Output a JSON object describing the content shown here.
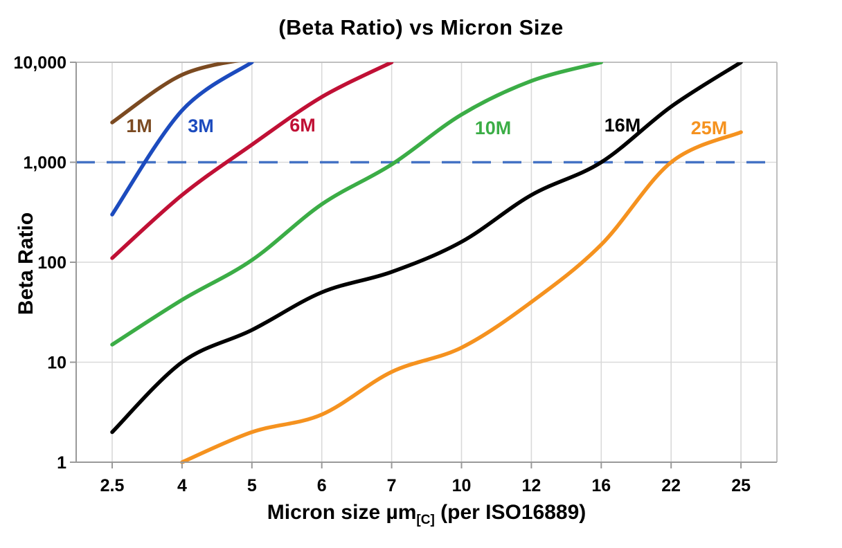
{
  "chart_data": {
    "type": "line",
    "title": "(Beta Ratio) vs Micron Size",
    "ylabel": "Beta Ratio",
    "xlabel_main": "Micron size µm",
    "xlabel_sub": "[C]",
    "xlabel_suffix": " (per ISO16889)",
    "x_categories": [
      "2.5",
      "4",
      "5",
      "6",
      "7",
      "10",
      "12",
      "16",
      "22",
      "25"
    ],
    "x_axis_type": "category (equal spacing)",
    "y_scale": "log",
    "y_range": [
      1,
      10000
    ],
    "y_tick_labels": [
      "10,000",
      "1,000",
      "100",
      "10",
      "1"
    ],
    "y_tick_values": [
      10000,
      1000,
      100,
      10,
      1
    ],
    "grid": "light gray verticals at each micron tick, horizontals at each decade",
    "legend_position": "labels drawn on curves",
    "reference_line": {
      "value": 1000,
      "style": "dashed",
      "color": "#4472C4",
      "meaning": "Beta ratio = 1000 rating threshold"
    },
    "series": [
      {
        "name": "1M",
        "color": "#7B4A21",
        "values": [
          2500,
          7500,
          null,
          null,
          null,
          null,
          null,
          null,
          null,
          null
        ],
        "offscale_hint": {
          "index": 2,
          "value": 11000
        },
        "note": "curve exits top of chart (>10,000) between 4 and 5 µm"
      },
      {
        "name": "3M",
        "color": "#1C4BBE",
        "values": [
          300,
          3300,
          10000,
          null,
          null,
          null,
          null,
          null,
          null,
          null
        ],
        "note": "reaches 10,000 at 5 µm; crosses beta 1000 near 3.2 µm"
      },
      {
        "name": "6M",
        "color": "#C01035",
        "values": [
          110,
          470,
          1500,
          4500,
          10000,
          null,
          null,
          null,
          null,
          null
        ],
        "note": "reaches 10,000 at 7 µm; crosses beta 1000 near 4.6 µm"
      },
      {
        "name": "10M",
        "color": "#3BAD46",
        "values": [
          15,
          42,
          105,
          380,
          950,
          3000,
          6500,
          10000,
          null,
          null
        ],
        "note": "reaches 10,000 at 16 µm; crosses beta 1000 near 7 µm"
      },
      {
        "name": "16M",
        "color": "#000000",
        "values": [
          2,
          10,
          21,
          50,
          80,
          160,
          470,
          1000,
          3600,
          10000
        ],
        "note": "crosses beta 1000 at 16 µm; reaches 10,000 at 25 µm"
      },
      {
        "name": "25M",
        "color": "#F5921F",
        "values": [
          null,
          1,
          2,
          3,
          8,
          14,
          40,
          150,
          1000,
          2000
        ],
        "note": "starts at beta 1 at 4 µm; crosses beta 1000 near 22 µm; ends at 2000 at 25 µm"
      }
    ]
  }
}
